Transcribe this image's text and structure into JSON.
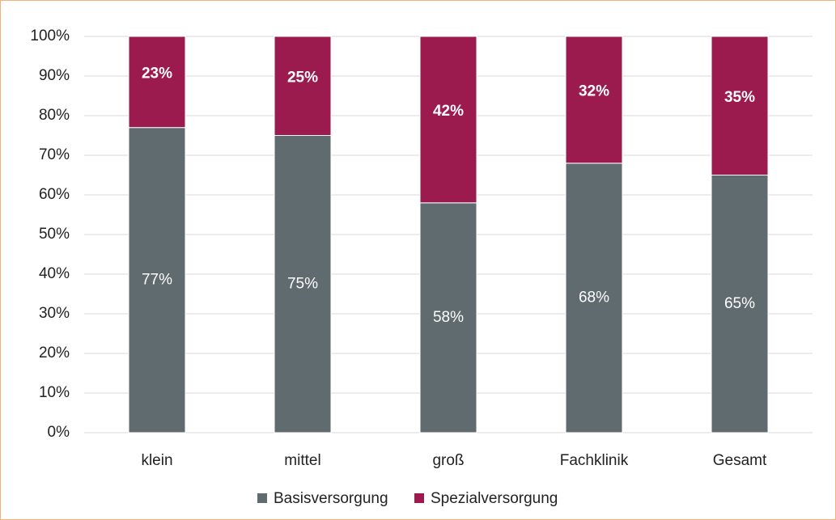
{
  "chart_data": {
    "type": "stacked_bar",
    "categories": [
      "klein",
      "mittel",
      "groß",
      "Fachklinik",
      "Gesamt"
    ],
    "series": [
      {
        "name": "Basisversorgung",
        "color": "#5f6b6e",
        "values": [
          77,
          75,
          58,
          68,
          65
        ],
        "value_labels": [
          "77%",
          "75%",
          "58%",
          "68%",
          "65%"
        ]
      },
      {
        "name": "Spezialversorgung",
        "color": "#9b1b4e",
        "values": [
          23,
          25,
          42,
          32,
          35
        ],
        "value_labels": [
          "23%",
          "25%",
          "42%",
          "32%",
          "35%"
        ]
      }
    ],
    "ylim": [
      0,
      100
    ],
    "yticks": [
      {
        "value": 0,
        "label": "0%"
      },
      {
        "value": 10,
        "label": "10%"
      },
      {
        "value": 20,
        "label": "20%"
      },
      {
        "value": 30,
        "label": "30%"
      },
      {
        "value": 40,
        "label": "40%"
      },
      {
        "value": 50,
        "label": "50%"
      },
      {
        "value": 60,
        "label": "60%"
      },
      {
        "value": 70,
        "label": "70%"
      },
      {
        "value": 80,
        "label": "80%"
      },
      {
        "value": 90,
        "label": "90%"
      },
      {
        "value": 100,
        "label": "100%"
      }
    ],
    "grid": true,
    "legend": "bottom"
  }
}
